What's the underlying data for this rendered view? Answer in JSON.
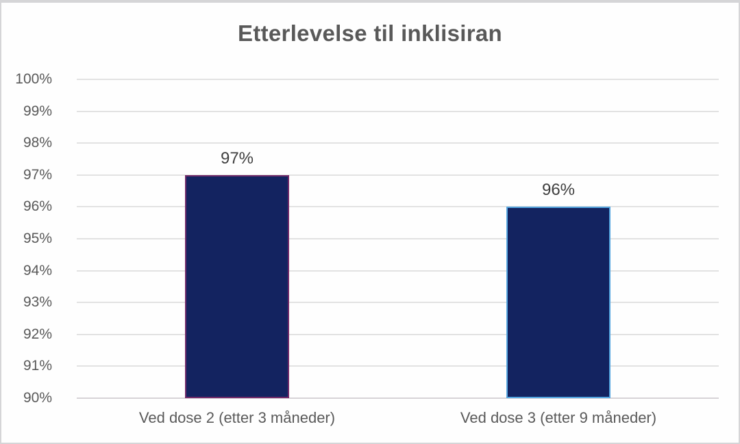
{
  "chart_data": {
    "type": "bar",
    "title": "Etterlevelse til inklisiran",
    "categories": [
      "Ved dose 2 (etter 3 måneder)",
      "Ved dose 3 (etter 9 måneder)"
    ],
    "values": [
      97,
      96
    ],
    "data_labels": [
      "97%",
      "96%"
    ],
    "ylim": [
      90,
      100
    ],
    "ytick_step": 1,
    "ytick_labels": [
      "100%",
      "99%",
      "98%",
      "97%",
      "96%",
      "95%",
      "94%",
      "93%",
      "92%",
      "91%",
      "90%"
    ],
    "grid": true,
    "legend": false,
    "xlabel": "",
    "ylabel": "",
    "colors": {
      "bar_fill": "#132360",
      "bar_borders": [
        "#722c6a",
        "#55a6e0"
      ],
      "gridline": "#e2e2e2",
      "axis_line": "#d7d3d7",
      "title_text": "#595959",
      "tick_text": "#595959",
      "value_label_text": "#3f3f3f",
      "card_border": "#d5d5d7",
      "background": "#fefefe"
    }
  }
}
